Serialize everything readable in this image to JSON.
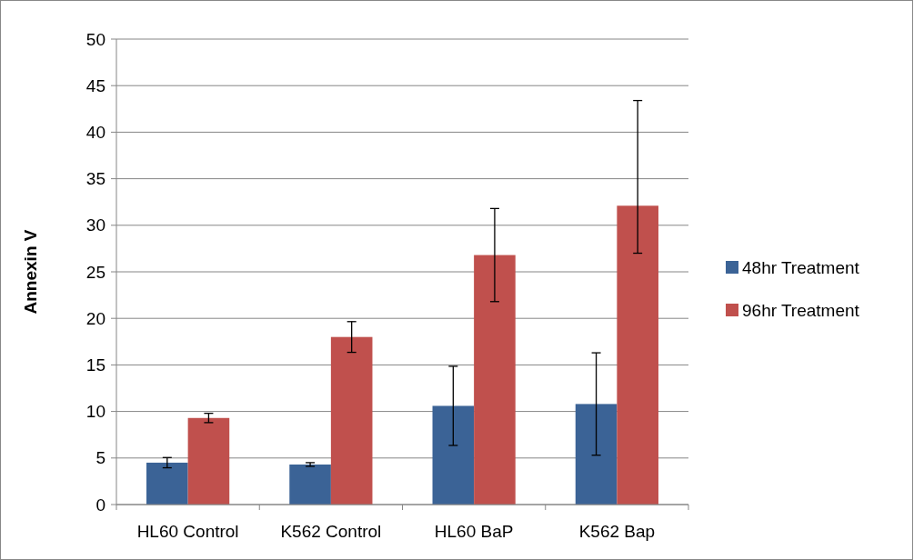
{
  "chart_data": {
    "type": "bar",
    "ylabel": "Annexin V",
    "categories": [
      "HL60 Control",
      "K562 Control",
      "HL60 BaP",
      "K562 Bap"
    ],
    "series": [
      {
        "name": "48hr Treatment",
        "color": "#3b6396",
        "values": [
          4.5,
          4.3,
          10.6,
          10.8
        ],
        "errors": [
          0.55,
          0.2,
          4.25,
          5.5
        ]
      },
      {
        "name": "96hr Treatment",
        "color": "#c0504d",
        "values": [
          9.3,
          18,
          26.8,
          32.1
        ],
        "errors": [
          0.5,
          1.65,
          5,
          [
            27.0,
            43.4
          ]
        ]
      }
    ],
    "ylim": [
      0,
      50
    ],
    "yticks": [
      0,
      5,
      10,
      15,
      20,
      25,
      30,
      35,
      40,
      45,
      50
    ],
    "grid": "y",
    "legend": "right"
  }
}
